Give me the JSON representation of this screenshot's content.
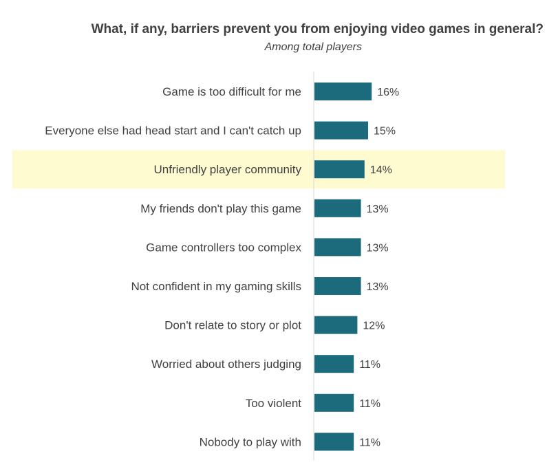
{
  "chart_data": {
    "type": "bar",
    "orientation": "horizontal",
    "title": "What, if any, barriers prevent you from enjoying video games in general?",
    "subtitle": "Among total players",
    "categories": [
      "Game is too difficult for me",
      "Everyone else had head start and I can't catch up",
      "Unfriendly player community",
      "My friends don't play this game",
      "Game controllers too complex",
      "Not confident in my gaming skills",
      "Don't relate to story or plot",
      "Worried about others judging",
      "Too violent",
      "Nobody to play with"
    ],
    "values": [
      16,
      15,
      14,
      13,
      13,
      13,
      12,
      11,
      11,
      11
    ],
    "value_labels": [
      "16%",
      "15%",
      "14%",
      "13%",
      "13%",
      "13%",
      "12%",
      "11%",
      "11%",
      "11%"
    ],
    "highlighted_category": "Unfriendly player community",
    "xlim": [
      0,
      100
    ],
    "grid": false,
    "legend": "none",
    "colors": {
      "bar": "#1c6b7d",
      "highlight": "#fefbd0",
      "axis": "#d9d9d9"
    }
  }
}
